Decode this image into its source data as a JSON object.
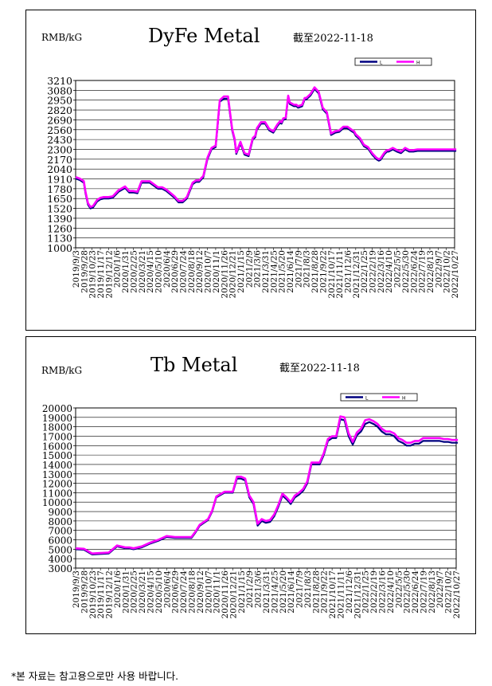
{
  "chart_data": [
    {
      "type": "line",
      "title": "DyFe Metal",
      "subtitle": "截至2022-11-18",
      "unit_label": "RMB/kG",
      "legend": [
        "L",
        "H"
      ],
      "legend_position": "top-right",
      "grid": true,
      "ylim": [
        1000,
        3210
      ],
      "yticks": [
        1000,
        1130,
        1260,
        1390,
        1520,
        1650,
        1780,
        1910,
        2040,
        2170,
        2300,
        2430,
        2560,
        2690,
        2820,
        2950,
        3080,
        3210
      ],
      "xticks": [
        "2019/9/3",
        "2019/9/28",
        "2019/10/23",
        "2019/11/17",
        "2019/12/12",
        "2020/1/6",
        "2020/1/31",
        "2020/2/25",
        "2020/3/21",
        "2020/4/15",
        "2020/5/10",
        "2020/6/4",
        "2020/6/29",
        "2020/7/24",
        "2020/8/18",
        "2020/9/12",
        "2020/10/7",
        "2020/11/1",
        "2020/11/26",
        "2020/12/21",
        "2021/1/15",
        "2021/2/9",
        "2021/3/6",
        "2021/3/31",
        "2021/4/25",
        "2021/5/20",
        "2021/6/14",
        "2021/7/9",
        "2021/8/3",
        "2021/8/28",
        "2021/9/22",
        "2021/10/17",
        "2021/11/11",
        "2021/12/6",
        "2021/12/31",
        "2022/1/25",
        "2022/2/19",
        "2022/3/16",
        "2022/4/10",
        "2022/5/5",
        "2022/5/30",
        "2022/6/24",
        "2022/7/19",
        "2022/8/13",
        "2022/9/7",
        "2022/10/2",
        "2022/10/27"
      ],
      "series": [
        {
          "name": "L",
          "color": "#000080",
          "x": [
            0,
            0.5,
            1.0,
            1.2,
            1.5,
            1.8,
            2.1,
            2.6,
            3.0,
            3.4,
            4.0,
            4.5,
            5.2,
            6.0,
            6.5,
            7.0,
            7.5,
            8.0,
            8.5,
            9.0,
            10.0,
            10.5,
            11.0,
            12.0,
            12.5,
            13.0,
            13.5,
            14.2,
            14.6,
            15.0,
            15.5,
            16.0,
            16.5,
            17.0,
            17.5,
            18.0,
            18.5,
            19.0,
            19.3,
            19.5,
            20.0,
            20.5,
            21.0,
            21.5,
            21.8,
            22.0,
            22.5,
            23.0,
            23.5,
            24.0,
            24.5,
            24.8,
            25.0,
            25.2,
            25.5,
            25.8,
            26.0,
            26.5,
            26.8,
            27.0,
            27.5,
            27.8,
            28.0,
            28.5,
            29.0,
            29.5,
            30.0,
            30.5,
            31.0,
            31.5,
            32.0,
            32.5,
            33.0,
            33.5,
            33.8,
            34.0,
            34.5,
            35.0,
            35.5,
            36.0,
            36.5,
            36.8,
            37.0,
            37.5,
            37.8,
            38.0,
            38.5,
            39.0,
            39.5,
            40.0,
            40.5,
            41.0,
            41.5,
            42.0,
            42.5,
            43.0,
            43.5,
            44.0,
            44.5,
            45.0,
            45.5,
            46.0,
            46.2
          ],
          "values": [
            1915,
            1895,
            1860,
            1720,
            1570,
            1520,
            1530,
            1610,
            1640,
            1650,
            1650,
            1660,
            1740,
            1790,
            1730,
            1730,
            1720,
            1860,
            1860,
            1860,
            1780,
            1780,
            1750,
            1660,
            1600,
            1600,
            1650,
            1840,
            1870,
            1870,
            1930,
            2170,
            2300,
            2330,
            2930,
            2970,
            2970,
            2550,
            2420,
            2240,
            2380,
            2230,
            2210,
            2430,
            2460,
            2560,
            2640,
            2640,
            2550,
            2520,
            2610,
            2650,
            2640,
            2690,
            2700,
            2990,
            2900,
            2870,
            2870,
            2850,
            2870,
            2960,
            2960,
            3010,
            3100,
            3040,
            2830,
            2770,
            2490,
            2520,
            2530,
            2580,
            2580,
            2540,
            2520,
            2480,
            2430,
            2340,
            2310,
            2230,
            2170,
            2150,
            2160,
            2240,
            2270,
            2270,
            2300,
            2270,
            2250,
            2300,
            2270,
            2270,
            2280,
            2280,
            2280,
            2280,
            2280,
            2280,
            2280,
            2280,
            2280,
            2280,
            2280
          ]
        },
        {
          "name": "H",
          "color": "#FF00FF",
          "x": [
            0,
            0.5,
            1.0,
            1.2,
            1.5,
            1.8,
            2.1,
            2.6,
            3.0,
            3.4,
            4.0,
            4.5,
            5.2,
            6.0,
            6.5,
            7.0,
            7.5,
            8.0,
            8.5,
            9.0,
            10.0,
            10.5,
            11.0,
            12.0,
            12.5,
            13.0,
            13.5,
            14.2,
            14.6,
            15.0,
            15.5,
            16.0,
            16.5,
            17.0,
            17.5,
            18.0,
            18.5,
            19.0,
            19.3,
            19.5,
            20.0,
            20.5,
            21.0,
            21.5,
            21.8,
            22.0,
            22.5,
            23.0,
            23.5,
            24.0,
            24.5,
            24.8,
            25.0,
            25.2,
            25.5,
            25.8,
            26.0,
            26.5,
            26.8,
            27.0,
            27.5,
            27.8,
            28.0,
            28.5,
            29.0,
            29.5,
            30.0,
            30.5,
            31.0,
            31.5,
            32.0,
            32.5,
            33.0,
            33.5,
            33.8,
            34.0,
            34.5,
            35.0,
            35.5,
            36.0,
            36.5,
            36.8,
            37.0,
            37.5,
            37.8,
            38.0,
            38.5,
            39.0,
            39.5,
            40.0,
            40.5,
            41.0,
            41.5,
            42.0,
            42.5,
            43.0,
            43.5,
            44.0,
            44.5,
            45.0,
            45.5,
            46.0,
            46.2
          ],
          "values": [
            1935,
            1915,
            1880,
            1740,
            1590,
            1540,
            1550,
            1630,
            1660,
            1670,
            1670,
            1680,
            1760,
            1810,
            1750,
            1750,
            1740,
            1880,
            1880,
            1880,
            1800,
            1800,
            1770,
            1680,
            1620,
            1620,
            1670,
            1860,
            1890,
            1890,
            1950,
            2190,
            2320,
            2350,
            2950,
            3000,
            3000,
            2570,
            2440,
            2260,
            2400,
            2250,
            2230,
            2450,
            2480,
            2580,
            2660,
            2660,
            2570,
            2540,
            2630,
            2670,
            2660,
            2710,
            2720,
            3010,
            2920,
            2890,
            2890,
            2870,
            2890,
            2980,
            2980,
            3030,
            3120,
            3060,
            2850,
            2790,
            2510,
            2540,
            2550,
            2600,
            2600,
            2560,
            2540,
            2500,
            2450,
            2360,
            2330,
            2250,
            2190,
            2170,
            2180,
            2260,
            2290,
            2290,
            2320,
            2290,
            2270,
            2320,
            2290,
            2290,
            2300,
            2300,
            2300,
            2300,
            2300,
            2300,
            2300,
            2300,
            2300,
            2300,
            2300
          ]
        }
      ]
    },
    {
      "type": "line",
      "title": "Tb Metal",
      "subtitle": "截至2022-11-18",
      "unit_label": "RMB/kG",
      "legend": [
        "L",
        "H"
      ],
      "legend_position": "top-right",
      "grid": true,
      "ylim": [
        3000,
        20000
      ],
      "yticks": [
        3000,
        4000,
        5000,
        6000,
        7000,
        8000,
        9000,
        10000,
        11000,
        12000,
        13000,
        14000,
        15000,
        16000,
        17000,
        18000,
        19000,
        20000
      ],
      "xticks": [
        "2019/9/3",
        "2019/9/28",
        "2019/10/23",
        "2019/11/17",
        "2019/12/12",
        "2020/1/6",
        "2020/1/31",
        "2020/2/25",
        "2020/3/21",
        "2020/4/15",
        "2020/5/10",
        "2020/6/4",
        "2020/6/29",
        "2020/7/24",
        "2020/8/18",
        "2020/9/12",
        "2020/10/7",
        "2020/11/1",
        "2020/11/26",
        "2020/12/21",
        "2021/1/15",
        "2021/2/9",
        "2021/3/6",
        "2021/3/31",
        "2021/4/25",
        "2021/5/20",
        "2021/6/14",
        "2021/7/9",
        "2021/8/3",
        "2021/8/28",
        "2021/9/22",
        "2021/10/17",
        "2021/11/11",
        "2021/12/6",
        "2021/12/31",
        "2022/1/25",
        "2022/2/19",
        "2022/3/16",
        "2022/4/10",
        "2022/5/5",
        "2022/5/30",
        "2022/6/24",
        "2022/7/19",
        "2022/8/13",
        "2022/9/7",
        "2022/10/2",
        "2022/10/27"
      ],
      "series": [
        {
          "name": "L",
          "color": "#000080",
          "x": [
            0,
            1.0,
            2.0,
            3.0,
            4.0,
            5.0,
            6.0,
            6.5,
            7.0,
            8.0,
            9.0,
            10.0,
            11.0,
            12.0,
            13.0,
            14.0,
            14.5,
            15.0,
            16.0,
            16.5,
            17.0,
            18.0,
            18.5,
            19.0,
            19.5,
            20.0,
            20.5,
            21.0,
            21.5,
            22.0,
            22.5,
            23.0,
            23.5,
            24.0,
            24.5,
            25.0,
            25.5,
            26.0,
            26.5,
            27.0,
            27.5,
            28.0,
            28.5,
            29.0,
            29.5,
            30.0,
            30.5,
            31.0,
            31.5,
            32.0,
            32.5,
            33.0,
            33.5,
            34.0,
            34.5,
            35.0,
            35.5,
            36.0,
            36.5,
            37.0,
            37.5,
            38.0,
            38.5,
            39.0,
            39.5,
            40.0,
            40.5,
            41.0,
            41.5,
            42.0,
            42.5,
            43.0,
            43.5,
            44.0,
            44.5,
            45.0,
            45.5,
            46.0,
            46.2
          ],
          "values": [
            5000,
            4950,
            4450,
            4500,
            4550,
            5300,
            5100,
            5100,
            5000,
            5200,
            5600,
            5900,
            6300,
            6200,
            6200,
            6200,
            6800,
            7500,
            8100,
            9000,
            10500,
            11000,
            11000,
            11000,
            12500,
            12500,
            12300,
            10500,
            9800,
            7500,
            8000,
            7800,
            7900,
            8500,
            9500,
            10700,
            10300,
            9800,
            10500,
            10800,
            11200,
            12000,
            14000,
            14000,
            14000,
            15000,
            16500,
            16800,
            16800,
            18800,
            18700,
            17000,
            16100,
            17100,
            17500,
            18300,
            18500,
            18300,
            18000,
            17500,
            17200,
            17200,
            17000,
            16500,
            16300,
            16000,
            16000,
            16200,
            16200,
            16500,
            16500,
            16500,
            16500,
            16500,
            16400,
            16400,
            16300,
            16300,
            16300
          ]
        },
        {
          "name": "H",
          "color": "#FF00FF",
          "x": [
            0,
            1.0,
            2.0,
            3.0,
            4.0,
            5.0,
            6.0,
            6.5,
            7.0,
            8.0,
            9.0,
            10.0,
            11.0,
            12.0,
            13.0,
            14.0,
            14.5,
            15.0,
            16.0,
            16.5,
            17.0,
            18.0,
            18.5,
            19.0,
            19.5,
            20.0,
            20.5,
            21.0,
            21.5,
            22.0,
            22.5,
            23.0,
            23.5,
            24.0,
            24.5,
            25.0,
            25.5,
            26.0,
            26.5,
            27.0,
            27.5,
            28.0,
            28.5,
            29.0,
            29.5,
            30.0,
            30.5,
            31.0,
            31.5,
            32.0,
            32.5,
            33.0,
            33.5,
            34.0,
            34.5,
            35.0,
            35.5,
            36.0,
            36.5,
            37.0,
            37.5,
            38.0,
            38.5,
            39.0,
            39.5,
            40.0,
            40.5,
            41.0,
            41.5,
            42.0,
            42.5,
            43.0,
            43.5,
            44.0,
            44.5,
            45.0,
            45.5,
            46.0,
            46.2
          ],
          "values": [
            5100,
            5050,
            4550,
            4600,
            4650,
            5400,
            5200,
            5200,
            5100,
            5300,
            5700,
            6000,
            6400,
            6300,
            6300,
            6300,
            6900,
            7600,
            8200,
            9100,
            10600,
            11100,
            11100,
            11100,
            12700,
            12700,
            12500,
            10700,
            10000,
            7700,
            8200,
            8000,
            8100,
            8700,
            9700,
            10900,
            10500,
            10000,
            10700,
            11000,
            11400,
            12200,
            14200,
            14200,
            14200,
            15200,
            16700,
            17000,
            17000,
            19100,
            19000,
            17300,
            16400,
            17400,
            17800,
            18700,
            18800,
            18600,
            18300,
            17800,
            17500,
            17500,
            17300,
            16800,
            16600,
            16300,
            16300,
            16500,
            16500,
            16800,
            16800,
            16800,
            16800,
            16800,
            16700,
            16700,
            16600,
            16600,
            16600
          ]
        }
      ]
    }
  ],
  "footnote": "*본 자료는 참고용으로만 사용 바랍니다."
}
